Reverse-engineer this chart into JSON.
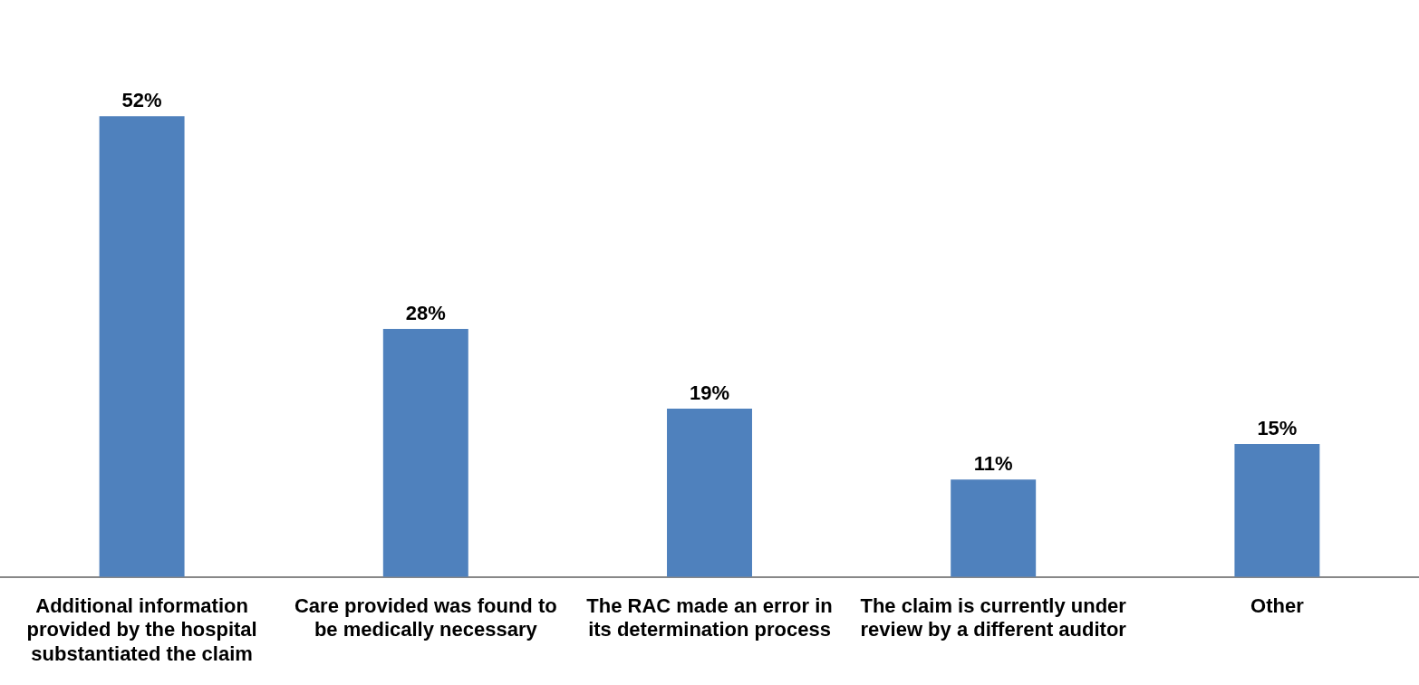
{
  "chart_data": {
    "type": "bar",
    "categories": [
      "Additional information provided by the hospital substantiated the claim",
      "Care provided was found to be medically necessary",
      "The RAC made an error in its determination process",
      "The claim is currently under review by a different auditor",
      "Other"
    ],
    "values": [
      52,
      28,
      19,
      11,
      15
    ],
    "color": "#4f81bd",
    "data_labels": true,
    "value_labels": [
      "52%",
      "28%",
      "19%",
      "11%",
      "15%"
    ],
    "grid": false,
    "legend": false
  }
}
